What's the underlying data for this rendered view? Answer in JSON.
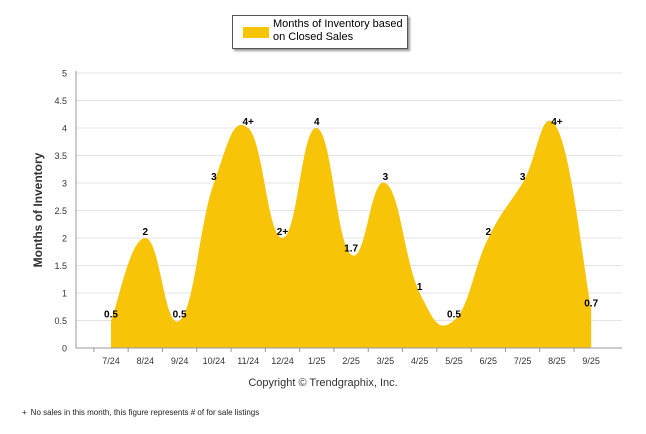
{
  "colors": {
    "fill": "#F7C408",
    "grid": "#e4e4e4",
    "axis": "#666666",
    "text": "#333333"
  },
  "legend": {
    "label": "Months of Inventory based on Closed Sales"
  },
  "copyright": "Copyright © Trendgraphix, Inc.",
  "footnote": {
    "mark": "+",
    "text": "No sales in this month, this figure represents # of for sale listings"
  },
  "chart_data": {
    "type": "area",
    "ylabel": "Months of Inventory",
    "xlabel": "",
    "ylim": [
      0,
      5
    ],
    "yticks": [
      "0",
      "0.5",
      "1",
      "1.5",
      "2",
      "2.5",
      "3",
      "3.5",
      "4",
      "4.5",
      "5"
    ],
    "grid": true,
    "legend_position": "top-center",
    "categories": [
      "7/24",
      "8/24",
      "9/24",
      "10/24",
      "11/24",
      "12/24",
      "1/25",
      "2/25",
      "3/25",
      "4/25",
      "5/25",
      "6/25",
      "7/25",
      "8/25",
      "9/25"
    ],
    "series": [
      {
        "name": "Months of Inventory based on Closed Sales",
        "values": [
          0.5,
          2,
          0.5,
          3,
          4,
          2,
          4,
          1.7,
          3,
          1,
          0.5,
          2,
          3,
          4,
          0.7
        ],
        "labels": [
          "0.5",
          "2",
          "0.5",
          "3",
          "4+",
          "2+",
          "4",
          "1.7",
          "3",
          "1",
          "0.5",
          "2",
          "3",
          "4+",
          "0.7"
        ]
      }
    ]
  }
}
